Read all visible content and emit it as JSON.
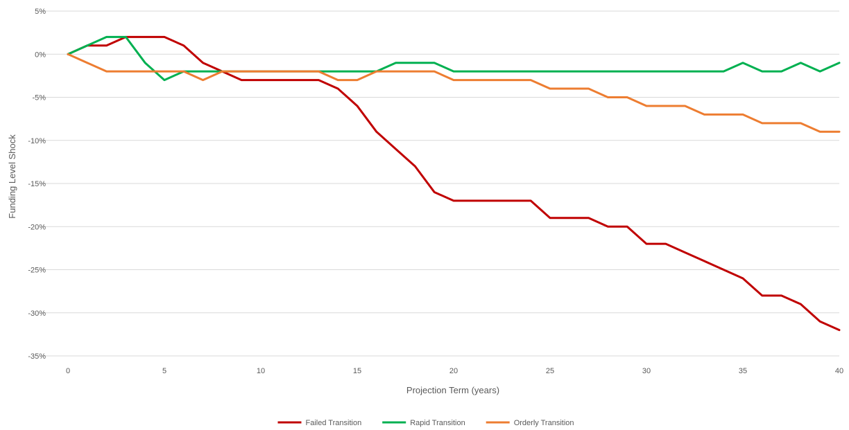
{
  "chart_data": {
    "type": "line",
    "title": "",
    "xlabel": "Projection Term (years)",
    "ylabel": "Funding Level Shock",
    "xlim": [
      0,
      40
    ],
    "ylim": [
      -35,
      5
    ],
    "x_ticks": [
      0,
      5,
      10,
      15,
      20,
      25,
      30,
      35,
      40
    ],
    "y_ticks": [
      5,
      0,
      -5,
      -10,
      -15,
      -20,
      -25,
      -30,
      -35
    ],
    "y_tick_labels": [
      "5%",
      "0%",
      "-5%",
      "-10%",
      "-15%",
      "-20%",
      "-25%",
      "-30%",
      "-35%"
    ],
    "grid": "horizontal",
    "legend_position": "bottom",
    "x": [
      0,
      1,
      2,
      3,
      4,
      5,
      6,
      7,
      8,
      9,
      10,
      11,
      12,
      13,
      14,
      15,
      16,
      17,
      18,
      19,
      20,
      21,
      22,
      23,
      24,
      25,
      26,
      27,
      28,
      29,
      30,
      31,
      32,
      33,
      34,
      35,
      36,
      37,
      38,
      39,
      40
    ],
    "series": [
      {
        "name": "Failed Transition",
        "color": "#C00000",
        "values": [
          0,
          1,
          1,
          2,
          2,
          2,
          1,
          -1,
          -2,
          -3,
          -3,
          -3,
          -3,
          -3,
          -4,
          -6,
          -9,
          -11,
          -13,
          -16,
          -17,
          -17,
          -17,
          -17,
          -17,
          -19,
          -19,
          -19,
          -20,
          -20,
          -22,
          -22,
          -23,
          -24,
          -25,
          -26,
          -28,
          -28,
          -29,
          -31,
          -32
        ]
      },
      {
        "name": "Rapid Transition",
        "color": "#00B050",
        "values": [
          0,
          1,
          2,
          2,
          -1,
          -3,
          -2,
          -2,
          -2,
          -2,
          -2,
          -2,
          -2,
          -2,
          -2,
          -2,
          -2,
          -1,
          -1,
          -1,
          -2,
          -2,
          -2,
          -2,
          -2,
          -2,
          -2,
          -2,
          -2,
          -2,
          -2,
          -2,
          -2,
          -2,
          -2,
          -1,
          -2,
          -2,
          -1,
          -2,
          -1
        ]
      },
      {
        "name": "Orderly Transition",
        "color": "#ED7D31",
        "values": [
          0,
          -1,
          -2,
          -2,
          -2,
          -2,
          -2,
          -3,
          -2,
          -2,
          -2,
          -2,
          -2,
          -2,
          -3,
          -3,
          -2,
          -2,
          -2,
          -2,
          -3,
          -3,
          -3,
          -3,
          -3,
          -4,
          -4,
          -4,
          -5,
          -5,
          -6,
          -6,
          -6,
          -7,
          -7,
          -7,
          -8,
          -8,
          -8,
          -9,
          -9
        ]
      }
    ],
    "grid_color": "#D9D9D9"
  }
}
